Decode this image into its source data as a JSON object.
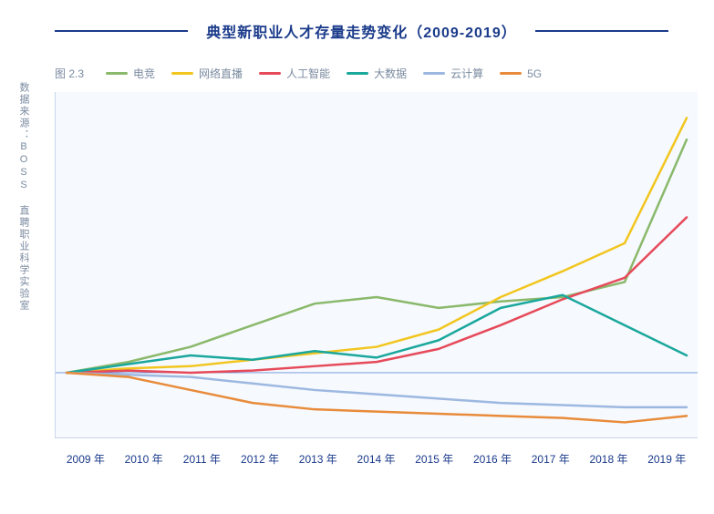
{
  "title": "典型新职业人才存量走势变化（2009-2019）",
  "source_label": "数据来源：BOSS 直聘职业科学实验室",
  "figure_label": "图 2.3",
  "chart": {
    "type": "line",
    "background_color": "#f6f9fe",
    "page_background": "#ffffff",
    "axis_color": "#c9d6ea",
    "baseline_color": "#6a8fd8",
    "title_color": "#1a3a8a",
    "title_fontsize": 16,
    "label_color": "#7a8aa0",
    "xlabel_color": "#1a3a8a",
    "tick_fontsize": 12,
    "legend_fontsize": 12,
    "line_width": 2.5,
    "grid": false,
    "xlim": [
      2009,
      2019
    ],
    "ylim": [
      -30,
      130
    ],
    "baseline_y": 0,
    "x_categories": [
      "2009 年",
      "2010 年",
      "2011 年",
      "2012 年",
      "2013 年",
      "2014 年",
      "2015 年",
      "2016 年",
      "2017 年",
      "2018 年",
      "2019 年"
    ],
    "series": [
      {
        "name": "电竞",
        "color": "#8ab96b",
        "values": [
          0,
          5,
          12,
          22,
          32,
          35,
          30,
          33,
          35,
          42,
          108
        ]
      },
      {
        "name": "网络直播",
        "color": "#f2c61f",
        "values": [
          0,
          2,
          3,
          6,
          9,
          12,
          20,
          35,
          47,
          60,
          118
        ]
      },
      {
        "name": "人工智能",
        "color": "#e64a5a",
        "values": [
          0,
          1,
          0,
          1,
          3,
          5,
          11,
          22,
          34,
          44,
          72
        ]
      },
      {
        "name": "大数据",
        "color": "#1aa79c",
        "values": [
          0,
          4,
          8,
          6,
          10,
          7,
          15,
          30,
          36,
          22,
          8
        ]
      },
      {
        "name": "云计算",
        "color": "#9db8e0",
        "values": [
          0,
          -1,
          -2,
          -5,
          -8,
          -10,
          -12,
          -14,
          -15,
          -16,
          -16
        ]
      },
      {
        "name": "5G",
        "color": "#e88b3a",
        "values": [
          0,
          -2,
          -8,
          -14,
          -17,
          -18,
          -19,
          -20,
          -21,
          -23,
          -20
        ]
      }
    ]
  }
}
